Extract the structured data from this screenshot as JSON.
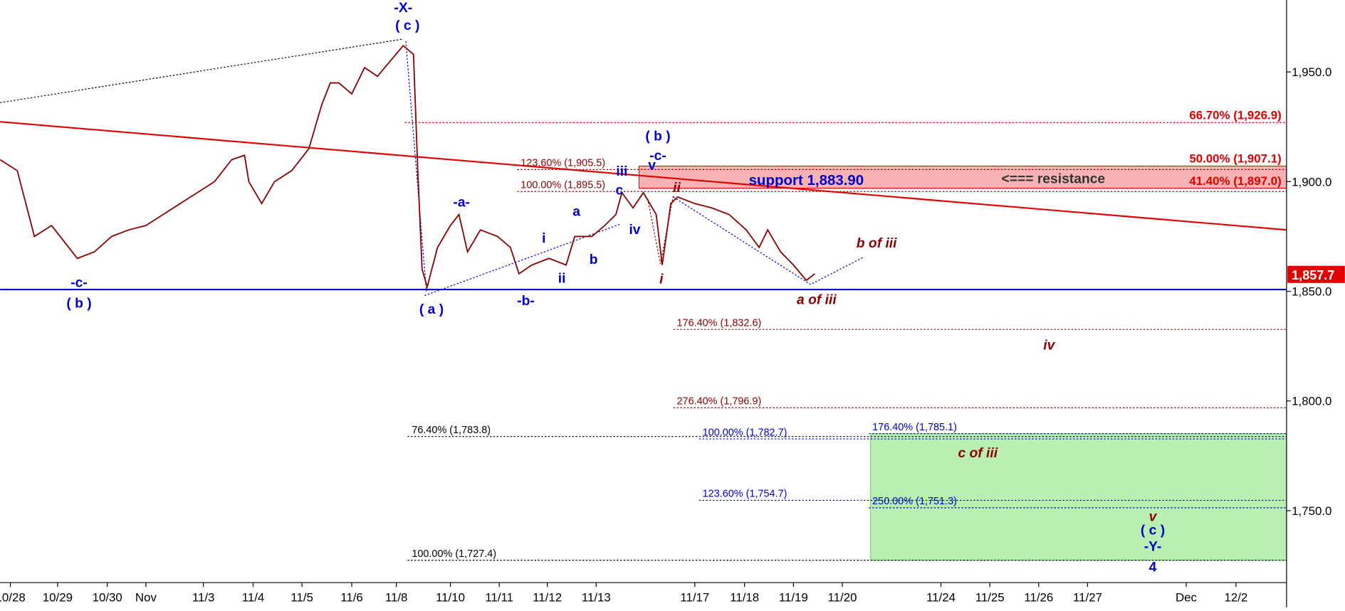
{
  "chart_data": {
    "type": "line",
    "color": "#8b0000",
    "x": [
      0,
      4,
      8,
      12,
      16,
      18,
      22,
      26,
      30,
      34,
      38,
      42,
      46,
      50,
      54,
      57,
      58,
      61,
      64,
      68,
      72,
      75,
      77,
      79,
      82,
      85,
      88,
      91,
      94,
      96.4,
      97.4,
      98.4,
      99.6,
      102,
      105,
      107,
      109,
      112,
      116,
      119,
      121,
      124,
      128,
      132,
      134,
      138,
      141,
      143.6,
      145,
      147.6,
      150,
      153,
      154.4,
      156.4,
      158,
      162,
      166,
      170,
      174,
      177,
      179,
      182,
      185,
      188,
      190
    ],
    "values": [
      1910,
      1905,
      1875,
      1880,
      1870,
      1865,
      1868,
      1875,
      1878,
      1880,
      1885,
      1890,
      1895,
      1900,
      1910,
      1912,
      1900,
      1890,
      1900,
      1905,
      1915,
      1935,
      1945,
      1945,
      1940,
      1952,
      1948,
      1955,
      1962,
      1958,
      1905,
      1860,
      1852,
      1870,
      1880,
      1885,
      1868,
      1878,
      1875,
      1870,
      1858,
      1862,
      1865,
      1862,
      1875,
      1875,
      1880,
      1885,
      1895,
      1888,
      1895,
      1885,
      1862,
      1890,
      1893,
      1890,
      1888,
      1885,
      1878,
      1870,
      1878,
      1868,
      1862,
      1855,
      1858
    ],
    "xlim": [
      0,
      300
    ],
    "ylim": [
      1717.2,
      1982.8
    ],
    "xticks": [
      {
        "value": 2.4,
        "label": "10/28"
      },
      {
        "value": 13.4,
        "label": "10/29"
      },
      {
        "value": 25,
        "label": "10/30"
      },
      {
        "value": 34,
        "label": "Nov"
      },
      {
        "value": 47.4,
        "label": "11/3"
      },
      {
        "value": 59,
        "label": "11/4"
      },
      {
        "value": 70.4,
        "label": "11/5"
      },
      {
        "value": 82,
        "label": "11/6"
      },
      {
        "value": 92.4,
        "label": "11/8"
      },
      {
        "value": 105,
        "label": "11/10"
      },
      {
        "value": 116.4,
        "label": "11/11"
      },
      {
        "value": 127.6,
        "label": "11/12"
      },
      {
        "value": 139,
        "label": "11/13"
      },
      {
        "value": 162,
        "label": "11/17"
      },
      {
        "value": 173.6,
        "label": "11/18"
      },
      {
        "value": 185,
        "label": "11/19"
      },
      {
        "value": 196.4,
        "label": "11/20"
      },
      {
        "value": 219.4,
        "label": "11/24"
      },
      {
        "value": 230.8,
        "label": "11/25"
      },
      {
        "value": 242.2,
        "label": "11/26"
      },
      {
        "value": 253.6,
        "label": "11/27"
      },
      {
        "value": 276.6,
        "label": "Dec"
      },
      {
        "value": 288.2,
        "label": "12/2"
      }
    ],
    "yticks": [
      {
        "value": 1750,
        "label": "1,750.0"
      },
      {
        "value": 1800,
        "label": "1,800.0"
      },
      {
        "value": 1850,
        "label": "1,850.0"
      },
      {
        "value": 1900,
        "label": "1,900.0"
      },
      {
        "value": 1950,
        "label": "1,950.0"
      }
    ],
    "trendline": {
      "x": [
        0,
        300
      ],
      "values": [
        1927.3,
        1878
      ],
      "color": "#e00000"
    },
    "channel": {
      "x": [
        0,
        94
      ],
      "values": [
        1936,
        1965
      ],
      "color": "#000000"
    },
    "support_level": {
      "value": 1850.8,
      "color": "#0000cc"
    },
    "last_price": {
      "value": 1857.7,
      "label": "1,857.7",
      "color": "#e00000"
    },
    "resistance_zone": {
      "range": [
        1897.0,
        1907.1
      ],
      "label": "<=== resistance",
      "color": "#f7b3b3"
    },
    "target_zone": {
      "range": [
        1727.4,
        1785.1
      ],
      "color": "#b7f0b0"
    },
    "support_text": "support 1,883.90",
    "levels": [
      {
        "label": "66.70% (1,926.9)",
        "value": 1926.9,
        "color": "#e00000"
      },
      {
        "label": "50.00% (1,907.1)",
        "value": 1907.1,
        "color": "#e00000"
      },
      {
        "label": "41.40% (1,897.0)",
        "value": 1897.0,
        "color": "#e00000"
      },
      {
        "label": "123.60% (1,905.5)",
        "value": 1905.5,
        "color": "#8b0000"
      },
      {
        "label": "100.00% (1,895.5)",
        "value": 1895.5,
        "color": "#8b0000"
      },
      {
        "label": "176.40% (1,832.6)",
        "value": 1832.6,
        "color": "#8b0000"
      },
      {
        "label": "276.40% (1,796.9)",
        "value": 1796.9,
        "color": "#8b0000"
      },
      {
        "label": "76.40% (1,783.8)",
        "value": 1783.8,
        "color": "#000000"
      },
      {
        "label": "100.00% (1,782.7)",
        "value": 1782.7,
        "color": "#0000cc"
      },
      {
        "label": "176.40% (1,785.1)",
        "value": 1785.1,
        "color": "#0000cc"
      },
      {
        "label": "123.60% (1,754.7)",
        "value": 1754.7,
        "color": "#0000cc"
      },
      {
        "label": "250.00% (1,751.3)",
        "value": 1751.3,
        "color": "#0000cc"
      },
      {
        "label": "100.00% (1,727.4)",
        "value": 1727.4,
        "color": "#000000"
      }
    ],
    "wave_labels": [
      "-X-",
      "( c )",
      "( b )",
      "-c-",
      "v",
      "iii",
      "c",
      "-a-",
      "a",
      "i",
      "b",
      "ii",
      "iv",
      "-b-",
      "-c-",
      "( b )",
      "( a )",
      "ii",
      "i",
      "b of iii",
      "a of iii",
      "iv",
      "c of iii",
      "v",
      "( c )",
      "-Y-",
      "4"
    ]
  }
}
